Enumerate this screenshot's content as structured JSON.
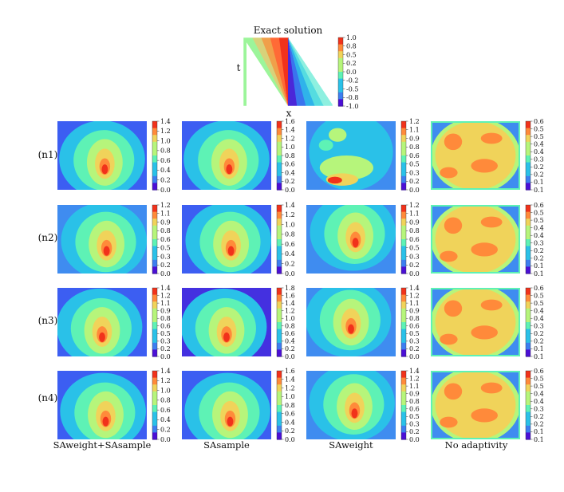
{
  "chart_data": {
    "type": "heatmap",
    "exact": {
      "title": "Exact solution",
      "xlabel": "x",
      "ylabel": "t",
      "colorbar_ticks": [
        "1.0",
        "0.8",
        "0.5",
        "0.2",
        "0.0",
        "-0.2",
        "-0.5",
        "-0.8",
        "-1.0"
      ]
    },
    "row_labels": [
      "(n1)",
      "(n2)",
      "(n3)",
      "(n4)"
    ],
    "column_labels": [
      "SAweight+SAsample",
      "SAsample",
      "SAweight",
      "No adaptivity"
    ],
    "colorbar_ticks": [
      [
        [
          "1.4",
          "1.2",
          "1.0",
          "0.8",
          "0.6",
          "0.4",
          "0.2",
          "0.0"
        ],
        [
          "1.6",
          "1.4",
          "1.2",
          "1.0",
          "0.8",
          "0.6",
          "0.4",
          "0.2",
          "0.0"
        ],
        [
          "1.2",
          "1.1",
          "0.9",
          "0.8",
          "0.6",
          "0.5",
          "0.3",
          "0.2",
          "0.0"
        ],
        [
          "0.6",
          "0.5",
          "0.5",
          "0.4",
          "0.4",
          "0.3",
          "0.2",
          "0.2",
          "0.1",
          "0.1"
        ]
      ],
      [
        [
          "1.2",
          "1.1",
          "0.9",
          "0.8",
          "0.6",
          "0.5",
          "0.3",
          "0.2",
          "0.0"
        ],
        [
          "1.4",
          "1.2",
          "1.0",
          "0.8",
          "0.6",
          "0.4",
          "0.2",
          "0.0"
        ],
        [
          "1.2",
          "1.1",
          "0.9",
          "0.8",
          "0.6",
          "0.5",
          "0.3",
          "0.2",
          "0.0"
        ],
        [
          "0.6",
          "0.5",
          "0.5",
          "0.4",
          "0.4",
          "0.3",
          "0.2",
          "0.2",
          "0.1",
          "0.1"
        ]
      ],
      [
        [
          "1.4",
          "1.2",
          "1.1",
          "0.9",
          "0.8",
          "0.6",
          "0.5",
          "0.3",
          "0.2",
          "0.0"
        ],
        [
          "1.8",
          "1.6",
          "1.4",
          "1.2",
          "1.0",
          "0.8",
          "0.6",
          "0.4",
          "0.2",
          "0.0"
        ],
        [
          "1.4",
          "1.2",
          "1.1",
          "0.9",
          "0.8",
          "0.6",
          "0.5",
          "0.3",
          "0.2",
          "0.0"
        ],
        [
          "0.6",
          "0.5",
          "0.5",
          "0.4",
          "0.4",
          "0.3",
          "0.2",
          "0.2",
          "0.1",
          "0.1"
        ]
      ],
      [
        [
          "1.4",
          "1.2",
          "1.0",
          "0.8",
          "0.6",
          "0.4",
          "0.2",
          "0.0"
        ],
        [
          "1.6",
          "1.4",
          "1.2",
          "1.0",
          "0.8",
          "0.6",
          "0.4",
          "0.2",
          "0.0"
        ],
        [
          "1.4",
          "1.2",
          "1.1",
          "0.9",
          "0.8",
          "0.6",
          "0.5",
          "0.3",
          "0.2",
          "0.0"
        ],
        [
          "0.6",
          "0.5",
          "0.5",
          "0.4",
          "0.4",
          "0.3",
          "0.2",
          "0.2",
          "0.1",
          "0.1"
        ]
      ]
    ],
    "colormap": [
      "#4b0fd6",
      "#3d7ef0",
      "#2ac1e8",
      "#5ef2b5",
      "#b6f57b",
      "#f0d35a",
      "#ff8a3a",
      "#f1321b"
    ],
    "outer_level_colors": [
      [
        "#3c5ef2",
        "#3c5ef2",
        "#3f8cf0",
        "#3f8cf0"
      ],
      [
        "#3f8cf0",
        "#3c5ef2",
        "#3f8cf0",
        "#3f8cf0"
      ],
      [
        "#3c5ef2",
        "#4430e0",
        "#3f8cf0",
        "#3f8cf0"
      ],
      [
        "#3c5ef2",
        "#3c5ef2",
        "#3f8cf0",
        "#3f8cf0"
      ]
    ]
  }
}
